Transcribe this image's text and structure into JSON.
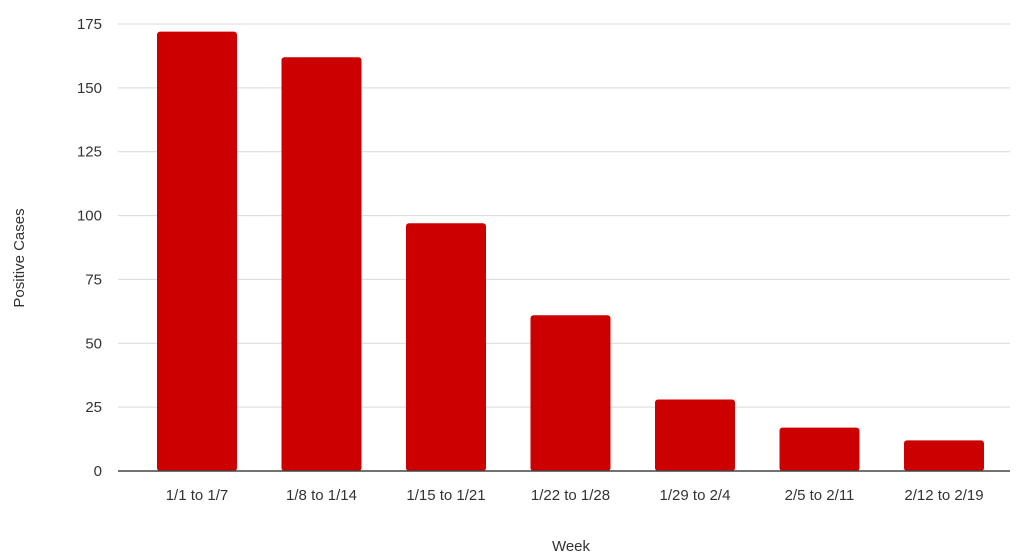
{
  "chart_data": {
    "type": "bar",
    "title": "",
    "xlabel": "Week",
    "ylabel": "Positive Cases",
    "categories": [
      "1/1 to 1/7",
      "1/8 to 1/14",
      "1/15 to 1/21",
      "1/22 to 1/28",
      "1/29 to 2/4",
      "2/5 to 2/11",
      "2/12 to 2/19"
    ],
    "values": [
      172,
      162,
      97,
      61,
      28,
      17,
      12
    ],
    "ylim": [
      0,
      175
    ],
    "yticks": [
      0,
      25,
      50,
      75,
      100,
      125,
      150,
      175
    ],
    "grid": true,
    "legend": "none",
    "bar_color": "#cc0000",
    "grid_color": "#d9d9d9",
    "axis_color": "#444444"
  }
}
